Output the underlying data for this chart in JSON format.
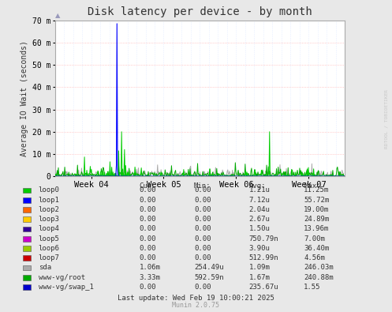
{
  "title": "Disk latency per device - by month",
  "ylabel": "Average IO Wait (seconds)",
  "watermark_top": "RDTOOL /",
  "watermark_bot": "TOBIOETIKER",
  "footer": "Munin 2.0.75",
  "last_update": "Last update: Wed Feb 19 10:00:21 2025",
  "ylim": [
    0,
    0.07
  ],
  "yticks": [
    0,
    0.01,
    0.02,
    0.03,
    0.04,
    0.05,
    0.06,
    0.07
  ],
  "ytick_labels": [
    "0",
    "10 m",
    "20 m",
    "30 m",
    "40 m",
    "50 m",
    "60 m",
    "70 m"
  ],
  "week_labels": [
    "Week 04",
    "Week 05",
    "Week 06",
    "Week 07"
  ],
  "bg_color": "#e8e8e8",
  "plot_bg_color": "#ffffff",
  "grid_major_color": "#ff9999",
  "grid_minor_color": "#ccddff",
  "legend_entries": [
    {
      "label": "loop0",
      "color": "#00cc00",
      "cur": "0.00",
      "min": "0.00",
      "avg": "1.21u",
      "max": "11.25m"
    },
    {
      "label": "loop1",
      "color": "#0000ff",
      "cur": "0.00",
      "min": "0.00",
      "avg": "7.12u",
      "max": "55.72m"
    },
    {
      "label": "loop2",
      "color": "#ff6600",
      "cur": "0.00",
      "min": "0.00",
      "avg": "2.04u",
      "max": "19.00m"
    },
    {
      "label": "loop3",
      "color": "#ffcc00",
      "cur": "0.00",
      "min": "0.00",
      "avg": "2.67u",
      "max": "24.89m"
    },
    {
      "label": "loop4",
      "color": "#330099",
      "cur": "0.00",
      "min": "0.00",
      "avg": "1.50u",
      "max": "13.96m"
    },
    {
      "label": "loop5",
      "color": "#cc00cc",
      "cur": "0.00",
      "min": "0.00",
      "avg": "750.79n",
      "max": "7.00m"
    },
    {
      "label": "loop6",
      "color": "#99cc00",
      "cur": "0.00",
      "min": "0.00",
      "avg": "3.90u",
      "max": "36.40m"
    },
    {
      "label": "loop7",
      "color": "#cc0000",
      "cur": "0.00",
      "min": "0.00",
      "avg": "512.99n",
      "max": "4.56m"
    },
    {
      "label": "sda",
      "color": "#aaaaaa",
      "cur": "1.06m",
      "min": "254.49u",
      "avg": "1.09m",
      "max": "246.03m"
    },
    {
      "label": "www-vg/root",
      "color": "#00aa00",
      "cur": "3.33m",
      "min": "592.59n",
      "avg": "1.67m",
      "max": "240.88m"
    },
    {
      "label": "www-vg/swap_1",
      "color": "#0000cc",
      "cur": "0.00",
      "min": "0.00",
      "avg": "235.67u",
      "max": "1.55"
    }
  ]
}
